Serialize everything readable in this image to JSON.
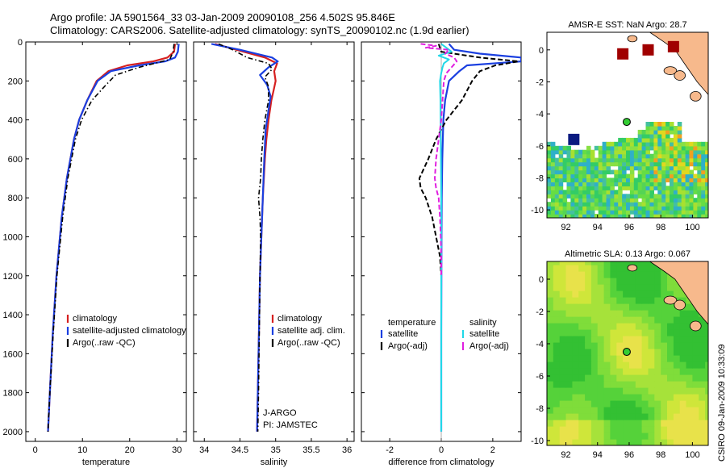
{
  "header": {
    "line1": "Argo profile: JA 5901564_33 03-Jan-2009 20090108_256 4.502S 95.846E",
    "line2": "Climatology: CARS2006. Satellite-adjusted climatology: synTS_20090102.nc (1.9d earlier)"
  },
  "side_stamp": "CSIRO 09-Jan-2009 10:33:09",
  "colors": {
    "climatology": "#d62020",
    "satellite": "#1a3fe0",
    "argo": "#000000",
    "sat_salinity": "#22d8e8",
    "argo_salinity_diff": "#e020e0",
    "land": "#f7b98c"
  },
  "chart_data": [
    {
      "id": "temperature",
      "type": "line",
      "xlabel": "temperature",
      "ylabel": "",
      "xlim": [
        -2,
        32
      ],
      "ylim": [
        2050,
        0
      ],
      "xticks": [
        0,
        10,
        20,
        30
      ],
      "yticks": [
        0,
        200,
        400,
        600,
        800,
        1000,
        1200,
        1400,
        1600,
        1800,
        2000
      ],
      "legend": [
        "climatology",
        "satellite-adjusted climatology",
        "Argo(..raw -QC)"
      ],
      "series": [
        {
          "name": "climatology",
          "style": "red",
          "depth": [
            10,
            50,
            80,
            100,
            120,
            150,
            200,
            300,
            400,
            500,
            700,
            900,
            1200,
            1500,
            1800,
            2000
          ],
          "values": [
            29.6,
            29.4,
            28.0,
            25.0,
            19.5,
            15.5,
            13.0,
            11.0,
            9.3,
            8.2,
            6.7,
            5.6,
            4.5,
            3.7,
            3.1,
            2.7
          ]
        },
        {
          "name": "satellite",
          "style": "blue",
          "depth": [
            10,
            50,
            80,
            100,
            120,
            150,
            200,
            300,
            400,
            500,
            700,
            900,
            1200,
            1500,
            1800,
            2000
          ],
          "values": [
            30.4,
            30.2,
            29.6,
            27.5,
            22.0,
            16.0,
            13.2,
            11.0,
            9.3,
            8.2,
            6.7,
            5.6,
            4.5,
            3.7,
            3.1,
            2.7
          ]
        },
        {
          "name": "Argo(..raw -QC)",
          "style": "black",
          "depth": [
            10,
            50,
            90,
            130,
            170,
            220,
            300,
            400,
            500,
            700,
            900,
            1200,
            1500,
            1800,
            2000
          ],
          "values": [
            29.4,
            29.2,
            28.5,
            22.0,
            17.0,
            15.0,
            12.0,
            9.8,
            8.5,
            6.9,
            5.8,
            4.6,
            3.8,
            3.1,
            2.7
          ]
        }
      ]
    },
    {
      "id": "salinity",
      "type": "line",
      "xlabel": "salinity",
      "ylabel": "",
      "xlim": [
        33.85,
        36.1
      ],
      "ylim": [
        2050,
        0
      ],
      "xticks": [
        34,
        34.5,
        35,
        35.5,
        36
      ],
      "legend": [
        "climatology",
        "satellite adj. clim.",
        "Argo(..raw -QC)"
      ],
      "annotations": [
        "J-ARGO",
        "PI: JAMSTEC"
      ],
      "series": [
        {
          "name": "climatology",
          "style": "red",
          "depth": [
            10,
            40,
            80,
            110,
            150,
            200,
            250,
            300,
            400,
            500,
            600,
            800,
            1000,
            1200,
            1400,
            1600,
            1800,
            2000
          ],
          "values": [
            34.15,
            34.45,
            34.85,
            35.02,
            34.98,
            35.0,
            34.97,
            34.94,
            34.9,
            34.87,
            34.85,
            34.82,
            34.8,
            34.78,
            34.77,
            34.76,
            34.75,
            34.74
          ]
        },
        {
          "name": "satellite adj. clim.",
          "style": "blue",
          "depth": [
            10,
            40,
            80,
            100,
            130,
            170,
            220,
            280,
            350,
            450,
            600,
            800,
            1000,
            1200,
            1400,
            1600,
            1800,
            2000
          ],
          "values": [
            34.1,
            34.5,
            34.95,
            35.03,
            34.9,
            34.78,
            34.88,
            34.93,
            34.9,
            34.86,
            34.84,
            34.82,
            34.8,
            34.78,
            34.77,
            34.76,
            34.75,
            34.74
          ]
        },
        {
          "name": "Argo(..raw -QC)",
          "style": "black",
          "depth": [
            10,
            40,
            80,
            110,
            140,
            180,
            230,
            300,
            400,
            500,
            600,
            700,
            800,
            900,
            1000,
            1200,
            1500,
            1800,
            2000
          ],
          "values": [
            34.2,
            34.4,
            34.6,
            34.9,
            34.95,
            34.85,
            34.9,
            34.9,
            34.85,
            34.82,
            34.8,
            34.79,
            34.76,
            34.78,
            34.79,
            34.78,
            34.77,
            34.76,
            34.75
          ]
        }
      ]
    },
    {
      "id": "difference",
      "type": "line",
      "xlabel": "difference from climatology",
      "ylabel": "",
      "xlim": [
        -3.1,
        3.1
      ],
      "ylim": [
        2050,
        0
      ],
      "xticks": [
        -2,
        0,
        2
      ],
      "legend_left_title": "temperature",
      "legend_right_title": "salinity",
      "legend": [
        "satellite",
        "Argo(-adj)",
        "satellite",
        "Argo(-adj)"
      ],
      "series": [
        {
          "name": "temperature satellite",
          "style": "blue",
          "depth": [
            10,
            40,
            60,
            80,
            100,
            120,
            150,
            200,
            300,
            400,
            600,
            800,
            1000,
            1500,
            2000
          ],
          "values": [
            0.3,
            0.5,
            1.5,
            3.1,
            3.1,
            1.0,
            0.7,
            0.3,
            0.15,
            0.08,
            0.04,
            0.02,
            0.01,
            0.0,
            0.0
          ]
        },
        {
          "name": "temperature Argo(-adj)",
          "style": "black-dash",
          "depth": [
            10,
            50,
            80,
            100,
            120,
            150,
            200,
            250,
            300,
            350,
            400,
            500,
            600,
            700,
            750,
            800,
            900,
            1000,
            1100,
            1200,
            1400,
            1600,
            2000
          ],
          "values": [
            -0.1,
            0.0,
            1.5,
            3.0,
            2.1,
            1.5,
            1.2,
            1.0,
            0.8,
            0.5,
            0.2,
            -0.2,
            -0.5,
            -0.85,
            -0.8,
            -0.6,
            -0.35,
            -0.2,
            -0.05,
            0.0,
            0.0,
            0.0,
            0.0
          ]
        },
        {
          "name": "salinity satellite",
          "style": "cyan",
          "depth": [
            10,
            30,
            50,
            70,
            90,
            110,
            130,
            160,
            200,
            300,
            500,
            800,
            1200,
            1600,
            2000
          ],
          "values": [
            0.0,
            0.2,
            0.4,
            -0.1,
            0.3,
            0.1,
            0.05,
            0.0,
            -0.05,
            -0.03,
            -0.02,
            0.0,
            0.0,
            0.0,
            0.0
          ]
        },
        {
          "name": "salinity Argo(-adj)",
          "style": "magenta-dash",
          "depth": [
            10,
            20,
            30,
            40,
            60,
            80,
            100,
            130,
            160,
            200,
            300,
            400,
            500,
            600,
            700,
            750,
            800,
            900,
            1000,
            1100,
            1200
          ],
          "values": [
            -0.8,
            -0.2,
            -0.6,
            0.3,
            0.15,
            0.5,
            0.6,
            0.4,
            0.2,
            0.1,
            0.05,
            0.0,
            -0.1,
            -0.2,
            -0.25,
            -0.2,
            -0.1,
            -0.05,
            -0.02,
            0.0,
            0.0
          ]
        }
      ]
    },
    {
      "id": "sst_map",
      "type": "heatmap",
      "title": "AMSR-E SST: NaN Argo: 28.7",
      "xlim": [
        90.8,
        101
      ],
      "ylim": [
        -10.5,
        1.1
      ],
      "xticks": [
        92,
        94,
        96,
        98,
        100
      ],
      "yticks": [
        0,
        -2,
        -4,
        -6,
        -8,
        -10
      ],
      "argo_position": {
        "lon": 95.846,
        "lat": -4.502
      },
      "notable_cells": [
        {
          "lon": 95.6,
          "lat": -0.25,
          "color": "#a00000"
        },
        {
          "lon": 97.2,
          "lat": 0.0,
          "color": "#a00000"
        },
        {
          "lon": 98.8,
          "lat": 0.2,
          "color": "#a00000"
        },
        {
          "lon": 92.5,
          "lat": -5.6,
          "color": "#0a1a80"
        }
      ]
    },
    {
      "id": "sla_map",
      "type": "heatmap",
      "title": "Altimetric SLA: 0.13 Argo: 0.067",
      "xlim": [
        90.8,
        101
      ],
      "ylim": [
        -10.3,
        1.1
      ],
      "xticks": [
        92,
        94,
        96,
        98,
        100
      ],
      "yticks": [
        0,
        -2,
        -4,
        -6,
        -8,
        -10
      ],
      "argo_position": {
        "lon": 95.846,
        "lat": -4.502
      }
    }
  ]
}
